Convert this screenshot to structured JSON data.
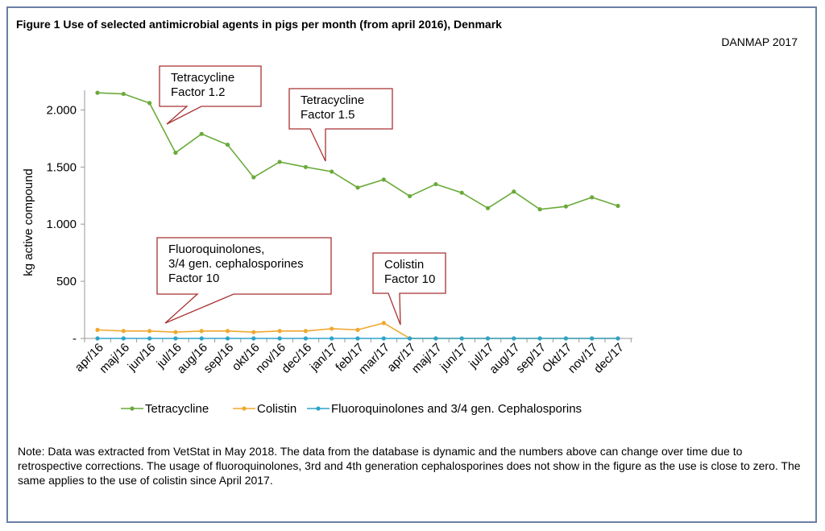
{
  "figure": {
    "title": "Figure 1 Use of selected antimicrobial agents in pigs per month (from april 2016), Denmark",
    "source": "DANMAP 2017",
    "note": "Note: Data was extracted from VetStat in May 2018. The data from the database is dynamic and the numbers above can change over time due to retrospective corrections. The usage of fluoroquinolones, 3rd and 4th generation cephalosporines does not show in the figure as the use is close to zero. The same applies to the use of colistin since April 2017."
  },
  "chart_data": {
    "type": "line",
    "ylabel": "kg active compound",
    "xlabel": "",
    "ylim": [
      0,
      2200
    ],
    "yticks": [
      {
        "value": 0,
        "label": "-"
      },
      {
        "value": 500,
        "label": "500"
      },
      {
        "value": 1000,
        "label": "1.000"
      },
      {
        "value": 1500,
        "label": "1.500"
      },
      {
        "value": 2000,
        "label": "2.000"
      }
    ],
    "categories": [
      "apr/16",
      "maj/16",
      "jun/16",
      "jul/16",
      "aug/16",
      "sep/16",
      "okt/16",
      "nov/16",
      "dec/16",
      "jan/17",
      "feb/17",
      "mar/17",
      "apr/17",
      "maj/17",
      "jun/17",
      "jul/17",
      "aug/17",
      "sep/17",
      "Okt/17",
      "nov/17",
      "dec/17"
    ],
    "series": [
      {
        "name": "Tetracycline",
        "color": "#6aaa3a",
        "values": [
          2150,
          2140,
          2060,
          1625,
          1790,
          1695,
          1410,
          1545,
          1500,
          1460,
          1320,
          1390,
          1245,
          1350,
          1275,
          1140,
          1285,
          1130,
          1155,
          1235,
          1160
        ]
      },
      {
        "name": "Colistin",
        "color": "#f0a830",
        "values": [
          75,
          65,
          65,
          55,
          65,
          65,
          55,
          65,
          65,
          85,
          75,
          135,
          0,
          0,
          0,
          0,
          0,
          0,
          0,
          0,
          0
        ]
      },
      {
        "name": "Fluoroquinolones and 3/4 gen. Cephalosporins",
        "color": "#2ea3c8",
        "values": [
          0,
          0,
          0,
          0,
          0,
          0,
          0,
          0,
          0,
          0,
          0,
          0,
          0,
          0,
          0,
          0,
          0,
          0,
          0,
          0,
          0
        ]
      }
    ],
    "legend_position": "bottom",
    "grid": false,
    "annotations": [
      {
        "id": "tetra-1",
        "lines": [
          "Tetracycline",
          "Factor 1.2"
        ],
        "at": "jun/16"
      },
      {
        "id": "tetra-2",
        "lines": [
          "Tetracycline",
          "Factor 1.5"
        ],
        "at": "dec/16"
      },
      {
        "id": "fluoro",
        "lines": [
          "Fluoroquinolones,",
          "3/4 gen. cephalosporines",
          "Factor 10"
        ],
        "at": "jul/16"
      },
      {
        "id": "colistin",
        "lines": [
          "Colistin",
          "Factor 10"
        ],
        "at": "apr/17"
      }
    ],
    "colors": {
      "callout_border": "#a83232",
      "axis": "#999999"
    }
  }
}
